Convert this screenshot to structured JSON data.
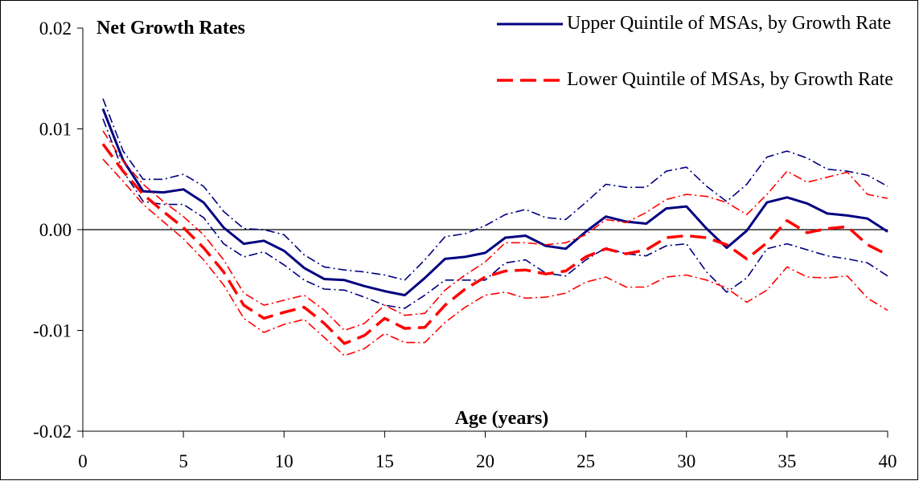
{
  "chart_data": {
    "type": "line",
    "title": "Net Growth Rates",
    "x_label": "Age (years)",
    "x": [
      1,
      2,
      3,
      4,
      5,
      6,
      7,
      8,
      9,
      10,
      11,
      12,
      13,
      14,
      15,
      16,
      17,
      18,
      19,
      20,
      21,
      22,
      23,
      24,
      25,
      26,
      27,
      28,
      29,
      30,
      31,
      32,
      33,
      34,
      35,
      36,
      37,
      38,
      39,
      40
    ],
    "series": [
      {
        "name": "Upper Quintile of MSAs, by Growth Rate",
        "color": "#000080",
        "style": "solid",
        "values": [
          0.012,
          0.0069,
          0.0038,
          0.0037,
          0.004,
          0.0027,
          0.0002,
          -0.0014,
          -0.0011,
          -0.0021,
          -0.0038,
          -0.0049,
          -0.005,
          -0.0056,
          -0.0061,
          -0.0065,
          -0.0048,
          -0.0029,
          -0.0027,
          -0.0023,
          -0.0008,
          -0.0006,
          -0.0016,
          -0.0019,
          -0.0002,
          0.0013,
          0.0008,
          0.0006,
          0.0021,
          0.0023,
          0.0001,
          -0.0018,
          -0.0001,
          0.0027,
          0.0032,
          0.0026,
          0.0016,
          0.0014,
          0.0011,
          -0.0002
        ],
        "ci_upper": [
          0.013,
          0.0078,
          0.005,
          0.005,
          0.0055,
          0.0043,
          0.0018,
          0.0001,
          0.0,
          -0.0005,
          -0.0025,
          -0.0037,
          -0.004,
          -0.0042,
          -0.0045,
          -0.005,
          -0.003,
          -0.0007,
          -0.0004,
          0.0004,
          0.0015,
          0.002,
          0.0012,
          0.001,
          0.0027,
          0.0045,
          0.0042,
          0.0042,
          0.0058,
          0.0062,
          0.0043,
          0.0028,
          0.0045,
          0.0072,
          0.0078,
          0.0071,
          0.006,
          0.0058,
          0.0054,
          0.0043
        ],
        "ci_lower": [
          0.011,
          0.0058,
          0.0028,
          0.0025,
          0.0025,
          0.0012,
          -0.0014,
          -0.0027,
          -0.0022,
          -0.0035,
          -0.005,
          -0.0059,
          -0.006,
          -0.0067,
          -0.0075,
          -0.0078,
          -0.0065,
          -0.005,
          -0.005,
          -0.005,
          -0.0033,
          -0.003,
          -0.0043,
          -0.0046,
          -0.003,
          -0.0018,
          -0.0024,
          -0.0026,
          -0.0016,
          -0.0014,
          -0.0042,
          -0.0062,
          -0.0048,
          -0.0019,
          -0.0014,
          -0.002,
          -0.0026,
          -0.0029,
          -0.0033,
          -0.0046
        ]
      },
      {
        "name": "Lower Quintile of MSAs, by Growth Rate",
        "color": "#ff0000",
        "style": "dashed",
        "values": [
          0.0085,
          0.0058,
          0.0035,
          0.0018,
          0.0002,
          -0.0018,
          -0.0042,
          -0.0075,
          -0.0088,
          -0.0082,
          -0.0077,
          -0.0093,
          -0.0113,
          -0.0105,
          -0.0088,
          -0.0098,
          -0.0097,
          -0.0075,
          -0.0059,
          -0.0047,
          -0.0041,
          -0.004,
          -0.0044,
          -0.0041,
          -0.0027,
          -0.0019,
          -0.0024,
          -0.002,
          -0.0008,
          -0.0006,
          -0.0008,
          -0.0015,
          -0.0029,
          -0.0013,
          0.0009,
          -0.0003,
          0.0001,
          0.0003,
          -0.0015,
          -0.0025
        ],
        "ci_upper": [
          0.0098,
          0.0068,
          0.0045,
          0.0028,
          0.0013,
          -0.0005,
          -0.003,
          -0.0063,
          -0.0075,
          -0.007,
          -0.0065,
          -0.008,
          -0.01,
          -0.0093,
          -0.0075,
          -0.0085,
          -0.0083,
          -0.006,
          -0.0045,
          -0.0032,
          -0.0013,
          -0.0013,
          -0.0015,
          -0.0013,
          -0.0005,
          0.001,
          0.0007,
          0.0017,
          0.003,
          0.0035,
          0.0033,
          0.0027,
          0.0015,
          0.0035,
          0.0058,
          0.0047,
          0.0052,
          0.0057,
          0.0035,
          0.0031
        ],
        "ci_lower": [
          0.007,
          0.0048,
          0.0025,
          0.0008,
          -0.0009,
          -0.003,
          -0.0055,
          -0.0088,
          -0.0102,
          -0.0094,
          -0.0089,
          -0.0107,
          -0.0125,
          -0.0118,
          -0.0103,
          -0.0112,
          -0.0112,
          -0.0092,
          -0.0077,
          -0.0065,
          -0.0062,
          -0.0068,
          -0.0067,
          -0.0063,
          -0.0052,
          -0.0047,
          -0.0057,
          -0.0057,
          -0.0047,
          -0.0045,
          -0.005,
          -0.0058,
          -0.0072,
          -0.006,
          -0.0037,
          -0.0047,
          -0.0048,
          -0.0046,
          -0.0068,
          -0.008
        ]
      }
    ],
    "xlim": [
      0,
      40
    ],
    "xticks": [
      0,
      5,
      10,
      15,
      20,
      25,
      30,
      35,
      40
    ],
    "ylim": [
      -0.02,
      0.02
    ],
    "yticks": [
      -0.02,
      -0.01,
      {
        "value": 0,
        "label": "0.00"
      },
      0.01,
      0.02
    ],
    "zero_line": true,
    "legend": "top-right"
  }
}
